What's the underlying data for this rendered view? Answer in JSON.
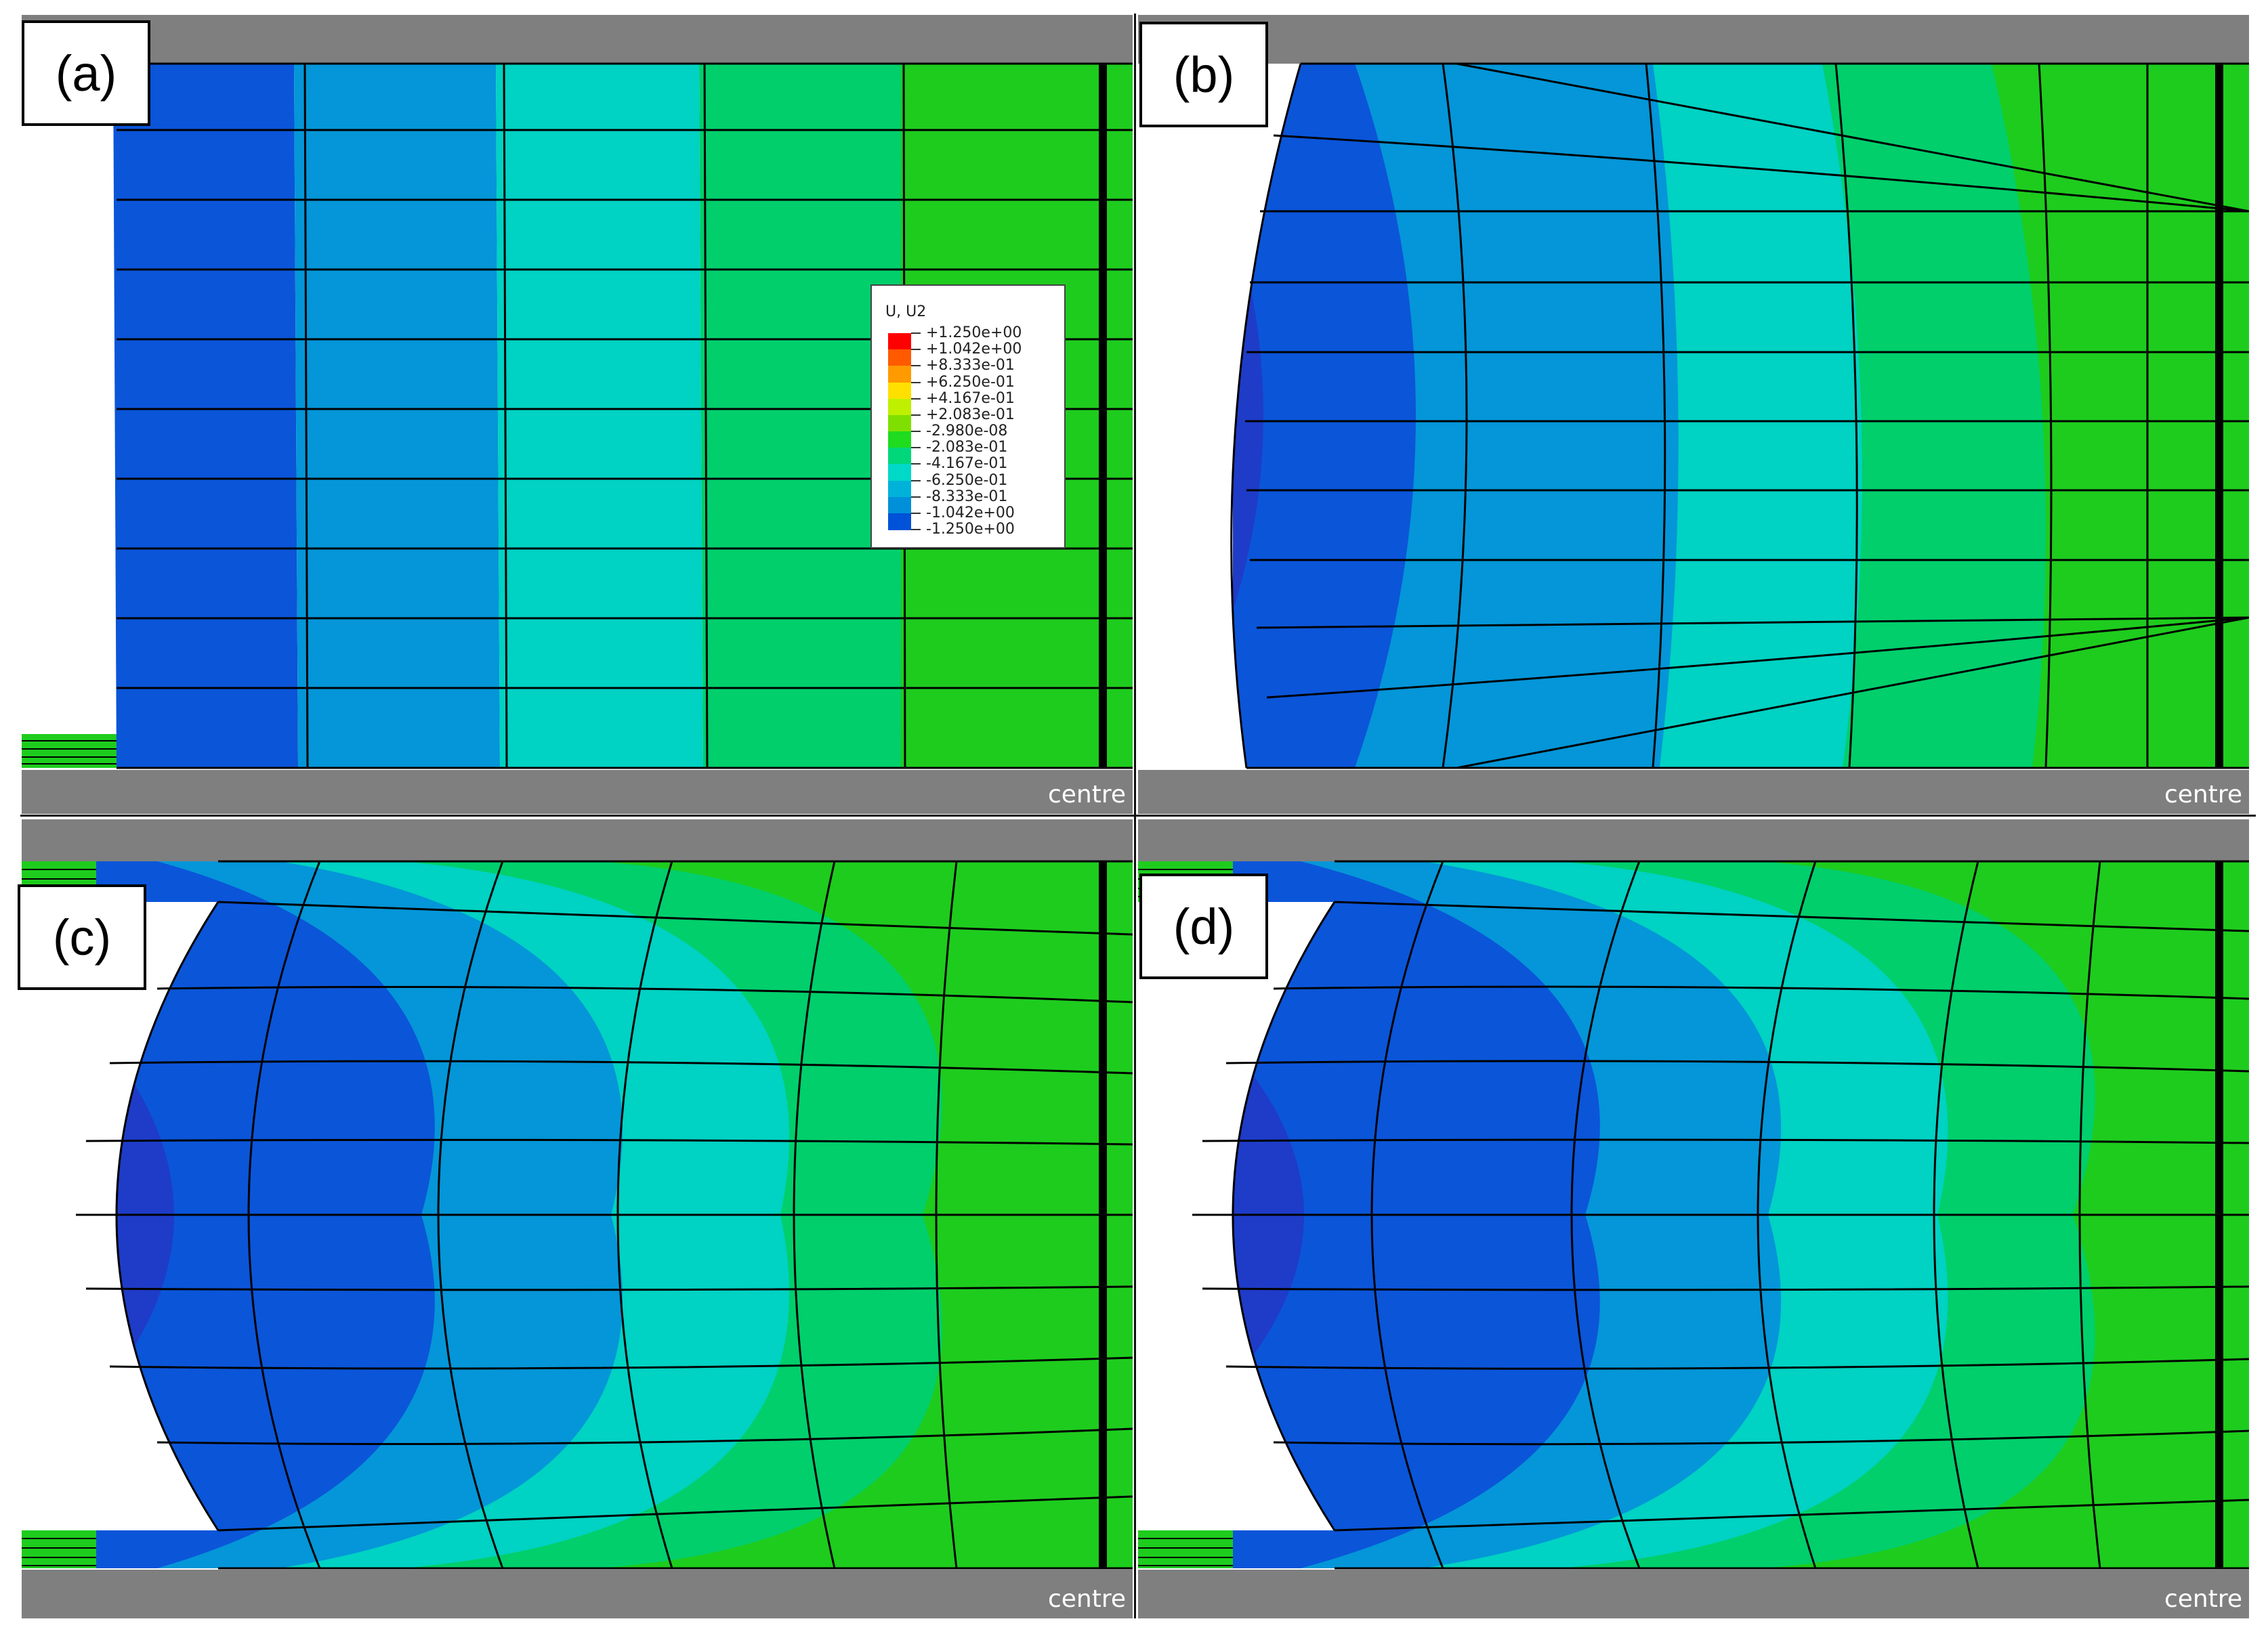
{
  "panels": [
    {
      "label": "(a)",
      "centre": "centre"
    },
    {
      "label": "(b)",
      "centre": "centre"
    },
    {
      "label": "(c)",
      "centre": "centre"
    },
    {
      "label": "(d)",
      "centre": "centre"
    }
  ],
  "legend": {
    "title": "U, U2",
    "values": [
      "+1.250e+00",
      "+1.042e+00",
      "+8.333e-01",
      "+6.250e-01",
      "+4.167e-01",
      "+2.083e-01",
      "-2.980e-08",
      "-2.083e-01",
      "-4.167e-01",
      "-6.250e-01",
      "-8.333e-01",
      "-1.042e+00",
      "-1.250e+00"
    ],
    "colors": [
      "#ff0000",
      "#ff5a00",
      "#ff9a00",
      "#ffe000",
      "#bff000",
      "#7fe000",
      "#1fdc1f",
      "#00d77a",
      "#00d9c8",
      "#00b2d9",
      "#0090d9",
      "#0052d8",
      "#0010c8"
    ]
  },
  "palette": {
    "frame_gray": "#7f7f7f",
    "background": "#ffffff",
    "band_darkblue": "#1e3cc8",
    "band_blue": "#0b55d9",
    "band_midblue": "#0496d8",
    "band_cyan": "#00d2c3",
    "band_teal": "#00cf6c",
    "band_green": "#1ecc1e"
  }
}
